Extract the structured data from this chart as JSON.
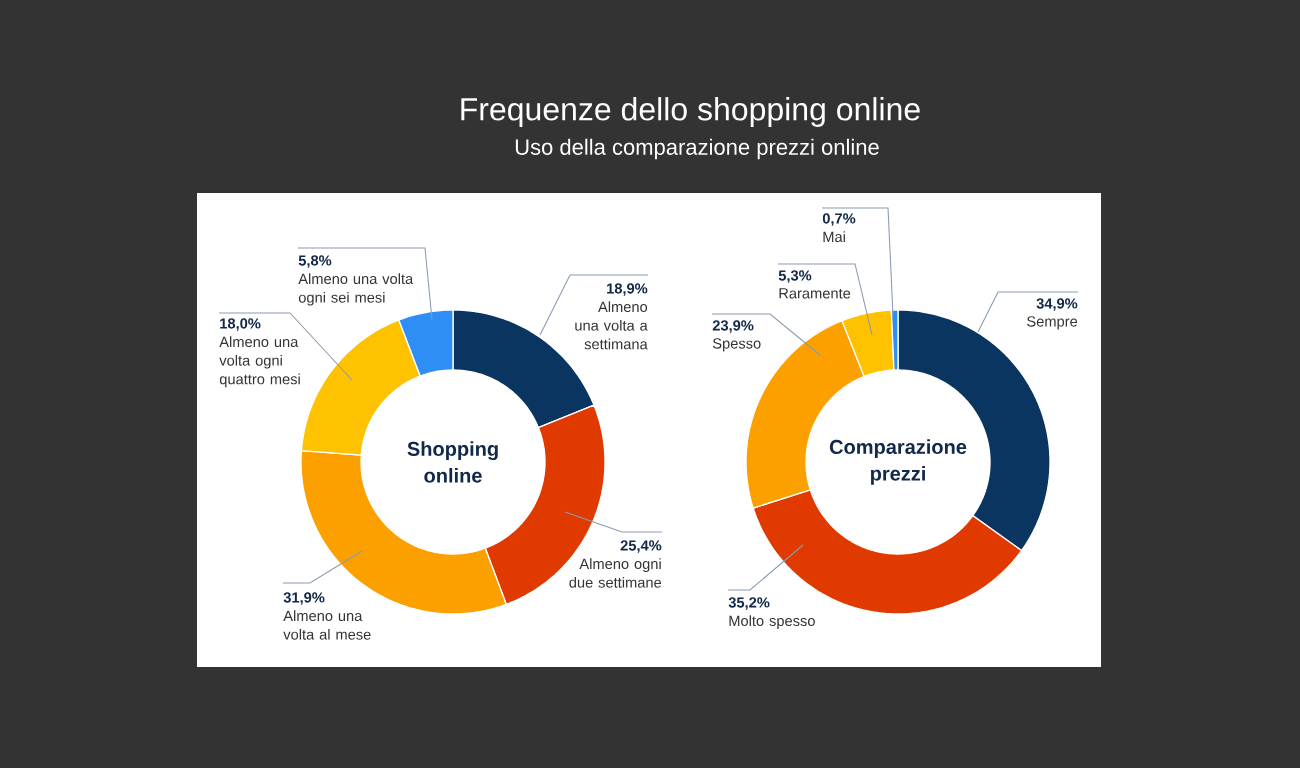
{
  "chart_data": [
    {
      "type": "donut",
      "title": "Frequenze dello shopping online",
      "subtitle": "Shopping online",
      "categories": [
        "Almeno una volta a settimana",
        "Almeno ogni due settimane",
        "Almeno una volta al mese",
        "Almeno una volta ogni quattro mesi",
        "Almeno una volta ogni sei mesi"
      ],
      "values": [
        18.9,
        25.4,
        31.9,
        18.0,
        5.8
      ],
      "value_labels": [
        "18,9%",
        "25,4%",
        "31,9%",
        "18,0%",
        "5,8%"
      ],
      "colors": [
        "#0a3561",
        "#e03a00",
        "#fca000",
        "#fec200",
        "#2e8ef5"
      ]
    },
    {
      "type": "donut",
      "title": "Uso della comparazione prezzi online",
      "subtitle": "Comparazione prezzi",
      "categories": [
        "Sempre",
        "Molto spesso",
        "Spesso",
        "Raramente",
        "Mai"
      ],
      "values": [
        34.9,
        35.2,
        23.9,
        5.3,
        0.7
      ],
      "value_labels": [
        "34,9%",
        "35,2%",
        "23,9%",
        "5,3%",
        "0,7%"
      ],
      "colors": [
        "#0a3561",
        "#e03a00",
        "#fca000",
        "#fec200",
        "#2e8ef5"
      ]
    }
  ]
}
